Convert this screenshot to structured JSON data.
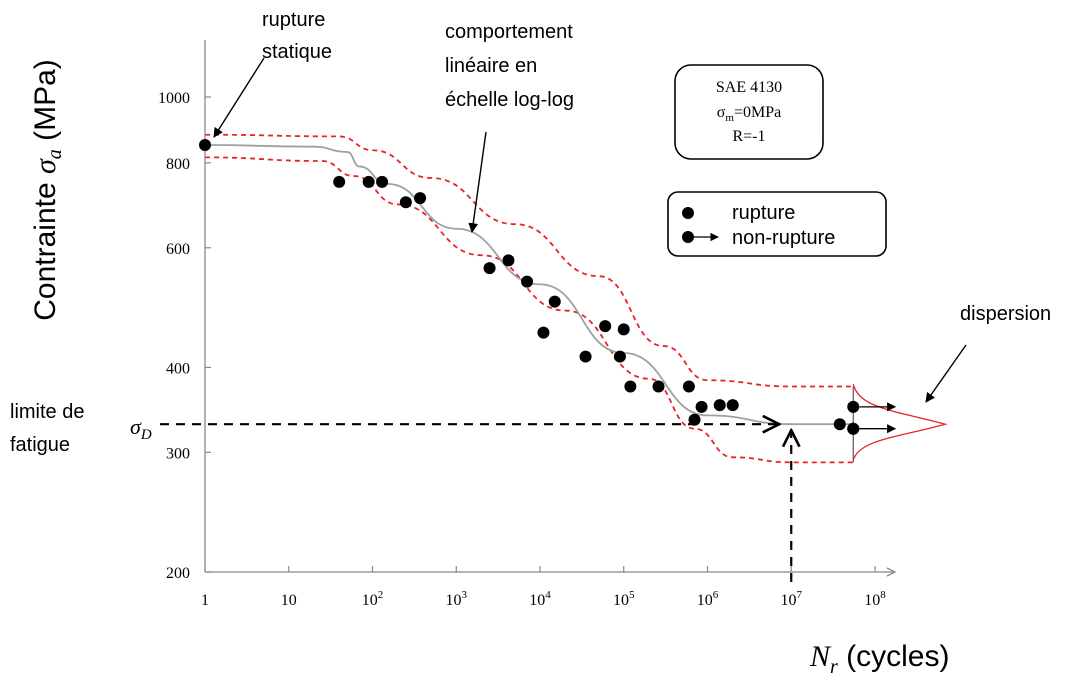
{
  "chart_data": {
    "type": "scatter",
    "xscale": "log",
    "yscale": "log",
    "xlim": [
      1,
      100000000
    ],
    "ylim": [
      200,
      1100
    ],
    "x_ticks": [
      {
        "value": 1,
        "label": "1",
        "exp": ""
      },
      {
        "value": 10,
        "label": "10",
        "exp": ""
      },
      {
        "value": 100,
        "label": "10",
        "exp": "2"
      },
      {
        "value": 1000,
        "label": "10",
        "exp": "3"
      },
      {
        "value": 10000,
        "label": "10",
        "exp": "4"
      },
      {
        "value": 100000,
        "label": "10",
        "exp": "5"
      },
      {
        "value": 1000000,
        "label": "10",
        "exp": "6"
      },
      {
        "value": 10000000,
        "label": "10",
        "exp": "7"
      },
      {
        "value": 100000000,
        "label": "10",
        "exp": "8"
      }
    ],
    "y_ticks": [
      {
        "value": 200,
        "label": "200"
      },
      {
        "value": 300,
        "label": "300"
      },
      {
        "value": 400,
        "label": "400"
      },
      {
        "value": 600,
        "label": "600"
      },
      {
        "value": 800,
        "label": "800"
      },
      {
        "value": 1000,
        "label": "1000"
      }
    ],
    "ylabel": {
      "main": "Contrainte ",
      "sym": "σ",
      "sub": "a",
      "unit": " (MPa)"
    },
    "xlabel": {
      "sym": "N",
      "sub": "r",
      "unit": " (cycles)"
    },
    "sigma_d_label": {
      "sym": "σ",
      "sub": "D"
    },
    "fatigue_limit": 330,
    "fatigue_limit_cycles": 10000000,
    "series": [
      {
        "name": "rupture",
        "points": [
          [
            1,
            850
          ],
          [
            40,
            750
          ],
          [
            90,
            750
          ],
          [
            130,
            750
          ],
          [
            250,
            700
          ],
          [
            370,
            710
          ],
          [
            2500,
            560
          ],
          [
            4200,
            575
          ],
          [
            7000,
            535
          ],
          [
            11000,
            450
          ],
          [
            15000,
            500
          ],
          [
            35000,
            415
          ],
          [
            60000,
            460
          ],
          [
            90000,
            415
          ],
          [
            100000,
            455
          ],
          [
            120000,
            375
          ],
          [
            260000,
            375
          ],
          [
            600000,
            375
          ],
          [
            700000,
            335
          ],
          [
            850000,
            350
          ],
          [
            1400000,
            352
          ],
          [
            2000000,
            352
          ],
          [
            38000000,
            330
          ],
          [
            55000000,
            325
          ]
        ]
      },
      {
        "name": "non-rupture",
        "points": [
          [
            10000000,
            330
          ],
          [
            55000000,
            350
          ],
          [
            55000000,
            325
          ]
        ]
      }
    ],
    "mean_curve": [
      [
        1,
        850
      ],
      [
        20,
        845
      ],
      [
        50,
        830
      ],
      [
        70,
        790
      ],
      [
        150,
        745
      ],
      [
        1000,
        640
      ],
      [
        10000,
        530
      ],
      [
        100000,
        420
      ],
      [
        1000000,
        340
      ],
      [
        10000000,
        330
      ],
      [
        55000000,
        330
      ]
    ],
    "upper_band": [
      [
        1,
        880
      ],
      [
        40,
        875
      ],
      [
        100,
        835
      ],
      [
        500,
        760
      ],
      [
        5000,
        650
      ],
      [
        50000,
        545
      ],
      [
        300000,
        430
      ],
      [
        1000000,
        383
      ],
      [
        10000000,
        375
      ],
      [
        55000000,
        375
      ]
    ],
    "lower_band": [
      [
        1,
        815
      ],
      [
        25,
        805
      ],
      [
        60,
        765
      ],
      [
        200,
        695
      ],
      [
        2000,
        585
      ],
      [
        20000,
        485
      ],
      [
        200000,
        385
      ],
      [
        700000,
        325
      ],
      [
        2000000,
        295
      ],
      [
        10000000,
        290
      ],
      [
        55000000,
        290
      ]
    ],
    "annotations": {
      "rupture_statique": [
        "rupture",
        "statique"
      ],
      "comportement": [
        "comportement",
        "linéaire en",
        "échelle log-log"
      ],
      "limite": [
        "limite de",
        "fatigue"
      ],
      "dispersion": "dispersion"
    },
    "material_box": {
      "line1": "SAE 4130",
      "line2_sym": "σ",
      "line2_sub": "m",
      "line2_rest": "=0MPa",
      "line3": "R=-1"
    },
    "legend": {
      "rupture": "rupture",
      "non_rupture": "non-rupture"
    },
    "colors": {
      "points": "#000000",
      "mean_curve": "#a0a0a0",
      "band": "#e8242a",
      "axis": "#888888",
      "dispersion": "#e8242a"
    },
    "grid": false
  }
}
